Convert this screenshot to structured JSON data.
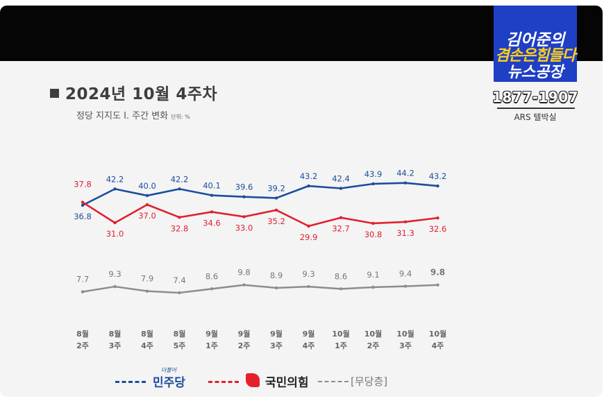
{
  "slide": {
    "title": "2024년 10월 4주차",
    "subtitle": "정당 지지도 Ⅰ. 주간 변화",
    "unit": "단위: %"
  },
  "logo": {
    "line1": "김어준의",
    "line2": "겸손은힘들다",
    "line3": "뉴스공장"
  },
  "overlay": {
    "phone": "1877-1907",
    "method": "ARS 텔박실"
  },
  "legend": {
    "dem_label": "민주당",
    "dem_mark": "더불어",
    "ppp_label": "국민의힘",
    "none_label": "[무당층]"
  },
  "colors": {
    "democratic": "#1b4d9c",
    "people_power": "#e0202f",
    "independent": "#8c8c8c",
    "logo_bg": "#1f3fc4"
  },
  "chart_data": {
    "type": "line",
    "categories": [
      [
        "8월",
        "2주"
      ],
      [
        "8월",
        "3주"
      ],
      [
        "8월",
        "4주"
      ],
      [
        "8월",
        "5주"
      ],
      [
        "9월",
        "1주"
      ],
      [
        "9월",
        "2주"
      ],
      [
        "9월",
        "3주"
      ],
      [
        "9월",
        "4주"
      ],
      [
        "10월",
        "1주"
      ],
      [
        "10월",
        "2주"
      ],
      [
        "10월",
        "3주"
      ],
      [
        "10월",
        "4주"
      ]
    ],
    "series": [
      {
        "name": "민주당",
        "color": "#1b4d9c",
        "values": [
          36.8,
          42.2,
          40.0,
          42.2,
          40.1,
          39.6,
          39.2,
          43.2,
          42.4,
          43.9,
          44.2,
          43.2
        ]
      },
      {
        "name": "국민의힘",
        "color": "#e0202f",
        "values": [
          37.8,
          31.0,
          37.0,
          32.8,
          34.6,
          33.0,
          35.2,
          29.9,
          32.7,
          30.8,
          31.3,
          32.6
        ]
      },
      {
        "name": "[무당층]",
        "color": "#8c8c8c",
        "values": [
          7.7,
          9.3,
          7.9,
          7.4,
          8.6,
          9.8,
          8.9,
          9.3,
          8.6,
          9.1,
          9.4,
          9.8
        ]
      }
    ]
  }
}
